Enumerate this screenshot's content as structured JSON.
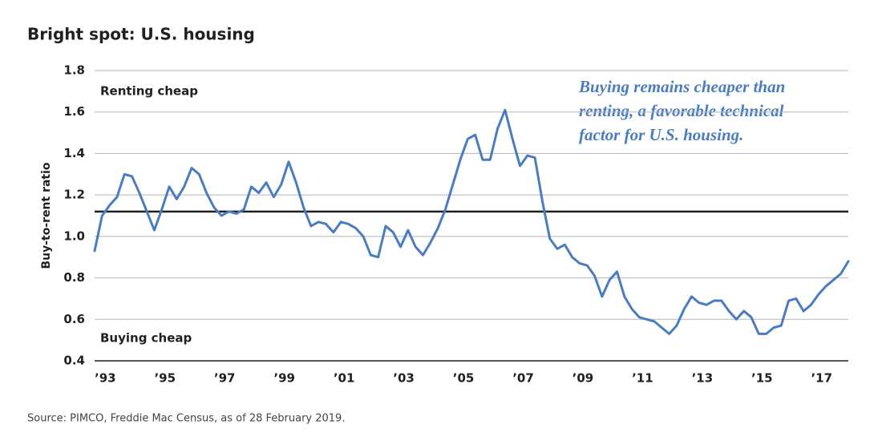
{
  "chart_data": {
    "type": "line",
    "title": "Bright spot: U.S. housing",
    "ylabel": "Buy-to-rent ratio",
    "annotations": [
      "Renting cheap",
      "Buying cheap"
    ],
    "note": [
      "Buying remains cheaper than",
      "renting, a favorable technical",
      "factor for U.S. housing."
    ],
    "source": "Source: PIMCO, Freddie Mac Census, as of 28 February 2019.",
    "color": "#4a7dc0",
    "reference_line": 1.12,
    "reference_color": "#231f20",
    "grid": true,
    "ylim": [
      0.4,
      1.8
    ],
    "yticks": [
      0.4,
      0.6,
      0.8,
      {
        "value": 1.0,
        "label": "1.0"
      },
      1.2,
      1.4,
      1.6,
      1.8
    ],
    "categories": [
      null,
      "’93",
      null,
      null,
      null,
      null,
      null,
      null,
      null,
      "’95",
      null,
      null,
      null,
      null,
      null,
      null,
      null,
      "’97",
      null,
      null,
      null,
      null,
      null,
      null,
      null,
      "’99",
      null,
      null,
      null,
      null,
      null,
      null,
      null,
      "’01",
      null,
      null,
      null,
      null,
      null,
      null,
      null,
      "’03",
      null,
      null,
      null,
      null,
      null,
      null,
      null,
      "’05",
      null,
      null,
      null,
      null,
      null,
      null,
      null,
      "’07",
      null,
      null,
      null,
      null,
      null,
      null,
      null,
      "’09",
      null,
      null,
      null,
      null,
      null,
      null,
      null,
      "’11",
      null,
      null,
      null,
      null,
      null,
      null,
      null,
      "’13",
      null,
      null,
      null,
      null,
      null,
      null,
      null,
      "’15",
      null,
      null,
      null,
      null,
      null,
      null,
      null,
      "’17",
      null,
      null,
      null,
      null
    ],
    "values": [
      0.93,
      1.1,
      1.15,
      1.19,
      1.3,
      1.29,
      1.21,
      1.12,
      1.03,
      1.13,
      1.24,
      1.18,
      1.24,
      1.33,
      1.3,
      1.21,
      1.14,
      1.1,
      1.12,
      1.11,
      1.13,
      1.24,
      1.21,
      1.26,
      1.19,
      1.25,
      1.36,
      1.26,
      1.14,
      1.05,
      1.07,
      1.06,
      1.02,
      1.07,
      1.06,
      1.04,
      1.0,
      0.91,
      0.9,
      1.05,
      1.02,
      0.95,
      1.03,
      0.95,
      0.91,
      0.97,
      1.04,
      1.13,
      1.25,
      1.37,
      1.47,
      1.49,
      1.37,
      1.37,
      1.52,
      1.61,
      1.47,
      1.34,
      1.39,
      1.38,
      1.17,
      0.99,
      0.94,
      0.96,
      0.9,
      0.87,
      0.86,
      0.81,
      0.71,
      0.79,
      0.83,
      0.71,
      0.65,
      0.61,
      0.6,
      0.59,
      0.56,
      0.53,
      0.57,
      0.65,
      0.71,
      0.68,
      0.67,
      0.69,
      0.69,
      0.64,
      0.6,
      0.64,
      0.61,
      0.53,
      0.53,
      0.56,
      0.57,
      0.69,
      0.7,
      0.64,
      0.67,
      0.72,
      0.76,
      0.79,
      0.82,
      0.88
    ]
  }
}
